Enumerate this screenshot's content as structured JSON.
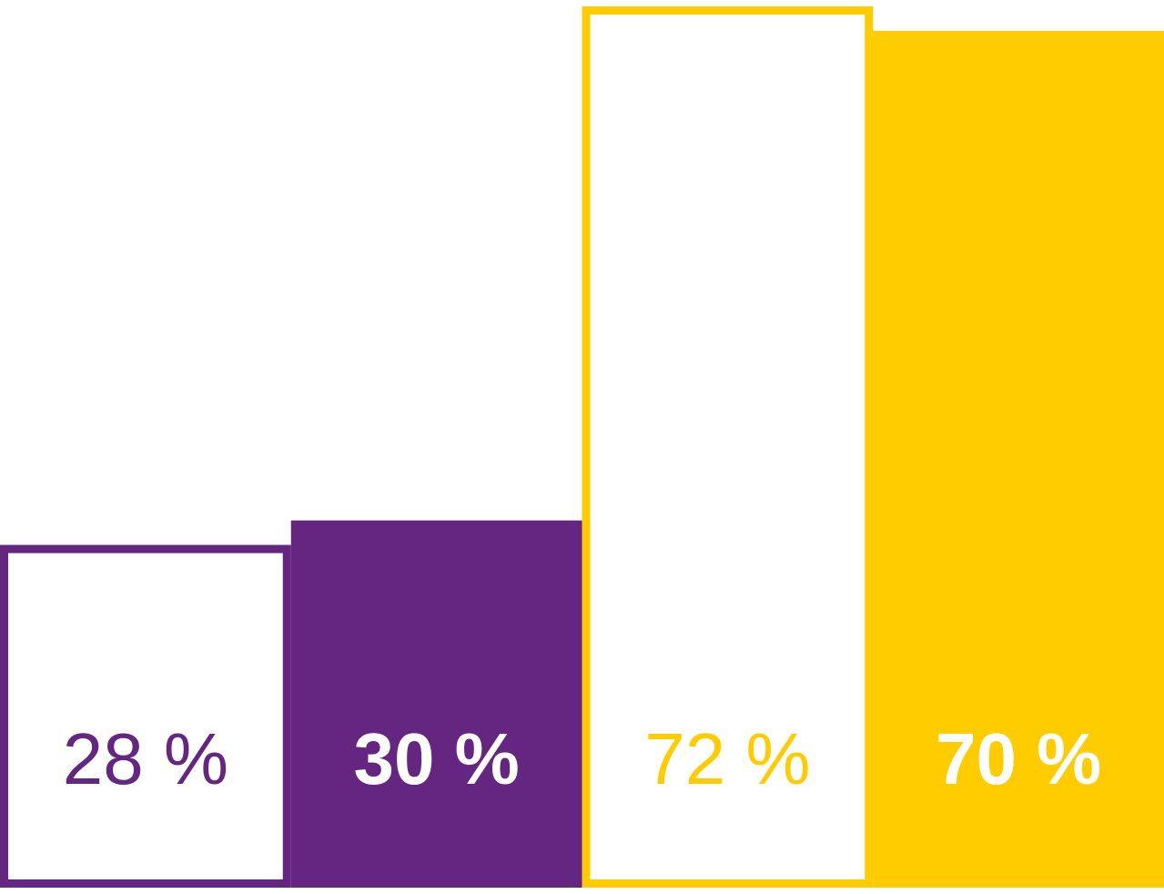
{
  "chart_data": {
    "type": "bar",
    "categories": [
      null,
      null,
      null,
      null
    ],
    "values": [
      28,
      30,
      72,
      70
    ],
    "value_labels": [
      "28 %",
      "30 %",
      "72 %",
      "70 %"
    ],
    "colors": [
      "#642680",
      "#642680",
      "#ffcc00",
      "#ffcc00"
    ],
    "filled": [
      false,
      true,
      false,
      true
    ]
  }
}
